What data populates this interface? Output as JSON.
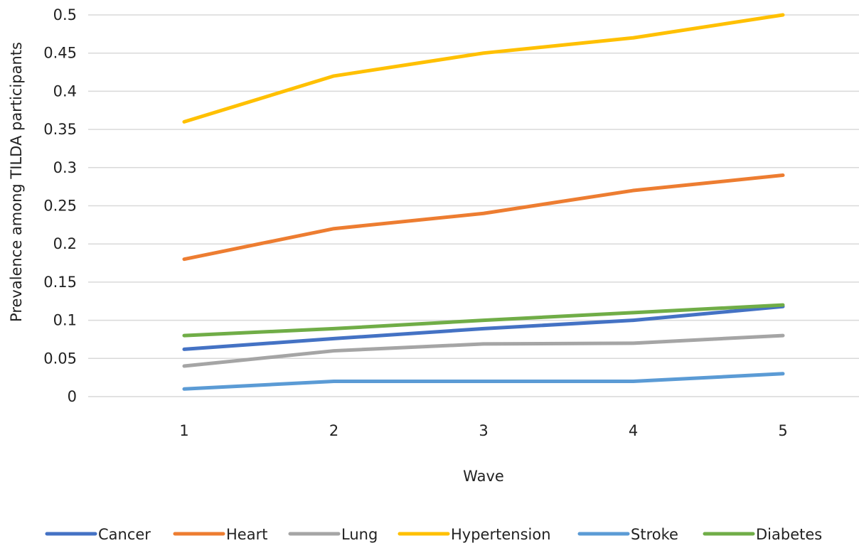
{
  "chart_data": {
    "type": "line",
    "title": "",
    "xlabel": "Wave",
    "ylabel": "Prevalence among TILDA participants",
    "categories": [
      "1",
      "2",
      "3",
      "4",
      "5"
    ],
    "x": [
      1,
      2,
      3,
      4,
      5
    ],
    "ylim": [
      0,
      0.5
    ],
    "yticks": [
      0,
      0.05,
      0.1,
      0.15,
      0.2,
      0.25,
      0.3,
      0.35,
      0.4,
      0.45,
      0.5
    ],
    "ytick_labels": [
      "0",
      "0.05",
      "0.1",
      "0.15",
      "0.2",
      "0.25",
      "0.3",
      "0.35",
      "0.4",
      "0.45",
      "0.5"
    ],
    "grid": "horizontal",
    "legend_position": "bottom",
    "series": [
      {
        "name": "Cancer",
        "values": [
          0.062,
          0.076,
          0.089,
          0.1,
          0.118
        ],
        "color": "#4472C4"
      },
      {
        "name": "Heart",
        "values": [
          0.18,
          0.22,
          0.24,
          0.27,
          0.29
        ],
        "color": "#ED7D31"
      },
      {
        "name": "Lung",
        "values": [
          0.04,
          0.06,
          0.069,
          0.07,
          0.08
        ],
        "color": "#A5A5A5"
      },
      {
        "name": "Hypertension",
        "values": [
          0.36,
          0.42,
          0.45,
          0.47,
          0.5
        ],
        "color": "#FFC000"
      },
      {
        "name": "Stroke",
        "values": [
          0.01,
          0.02,
          0.02,
          0.02,
          0.03
        ],
        "color": "#5B9BD5"
      },
      {
        "name": "Diabetes",
        "values": [
          0.08,
          0.089,
          0.1,
          0.11,
          0.12
        ],
        "color": "#70AD47"
      }
    ]
  }
}
